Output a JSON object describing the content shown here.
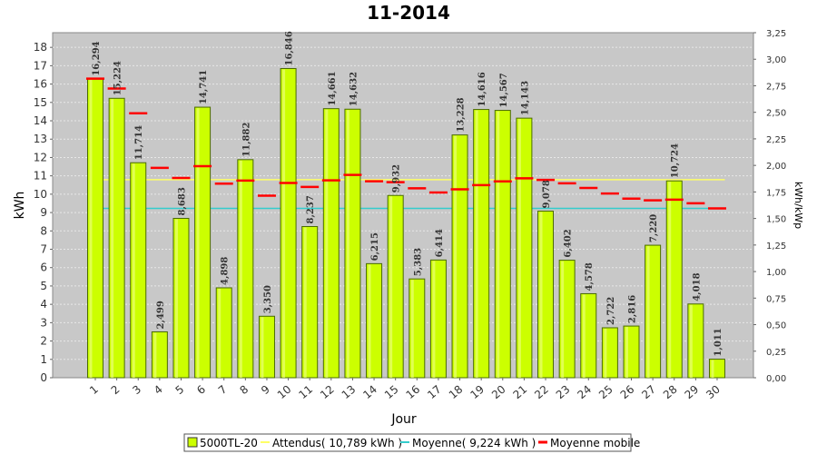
{
  "chart_data": {
    "type": "bar",
    "title": "11-2014",
    "xlabel": "Jour",
    "ylabel": "kWh",
    "ylabel_right": "kWh/kWp",
    "ylim": [
      0,
      18.8
    ],
    "ylim_right": [
      0,
      3.25
    ],
    "y_ticks": [
      "0",
      "1",
      "2",
      "3",
      "4",
      "5",
      "6",
      "7",
      "8",
      "9",
      "10",
      "11",
      "12",
      "13",
      "14",
      "15",
      "16",
      "17",
      "18"
    ],
    "y_ticks_right": [
      "0,00",
      "0,25",
      "0,50",
      "0,75",
      "1,00",
      "1,25",
      "1,50",
      "1,75",
      "2,00",
      "2,25",
      "2,50",
      "2,75",
      "3,00",
      "3,25"
    ],
    "categories": [
      "1",
      "2",
      "3",
      "4",
      "5",
      "6",
      "7",
      "8",
      "9",
      "10",
      "11",
      "12",
      "13",
      "14",
      "15",
      "16",
      "17",
      "18",
      "19",
      "20",
      "21",
      "22",
      "23",
      "24",
      "25",
      "26",
      "27",
      "28",
      "29",
      "30"
    ],
    "series": [
      {
        "name": "5000TL-20",
        "color": "#ccff00",
        "values": [
          16.294,
          15.224,
          11.714,
          2.499,
          8.683,
          14.741,
          4.898,
          11.882,
          3.35,
          16.846,
          8.237,
          14.661,
          14.632,
          6.215,
          9.932,
          5.383,
          6.414,
          13.228,
          14.616,
          14.567,
          14.143,
          9.078,
          6.402,
          4.578,
          2.722,
          2.816,
          7.22,
          10.724,
          4.018,
          1.011
        ],
        "labels": [
          "16,294",
          "15,224",
          "11,714",
          "2,499",
          "8,683",
          "14,741",
          "4,898",
          "11,882",
          "3,350",
          "16,846",
          "8,237",
          "14,661",
          "14,632",
          "6,215",
          "9,932",
          "5,383",
          "6,414",
          "13,228",
          "14,616",
          "14,567",
          "14,143",
          "9,078",
          "6,402",
          "4,578",
          "2,722",
          "2,816",
          "7,220",
          "10,724",
          "4,018",
          "1,011"
        ]
      }
    ],
    "reference_lines": [
      {
        "name": "Attendus( 10,789 kWh )",
        "value": 10.789,
        "color": "#ffff66"
      },
      {
        "name": "Moyenne( 9,224 kWh )",
        "value": 9.224,
        "color": "#33cccc"
      }
    ],
    "moving_average": {
      "name": "Moyenne mobile",
      "color": "#ff0000",
      "values": [
        16.294,
        15.759,
        14.411,
        11.433,
        10.883,
        11.526,
        10.578,
        10.741,
        9.92,
        10.612,
        10.397,
        10.752,
        11.051,
        10.705,
        10.653,
        10.323,
        10.093,
        10.267,
        10.496,
        10.699,
        10.863,
        10.782,
        10.591,
        10.34,
        10.035,
        9.758,
        9.664,
        9.702,
        9.506,
        9.224
      ]
    },
    "legend_position": "bottom",
    "grid": true
  }
}
